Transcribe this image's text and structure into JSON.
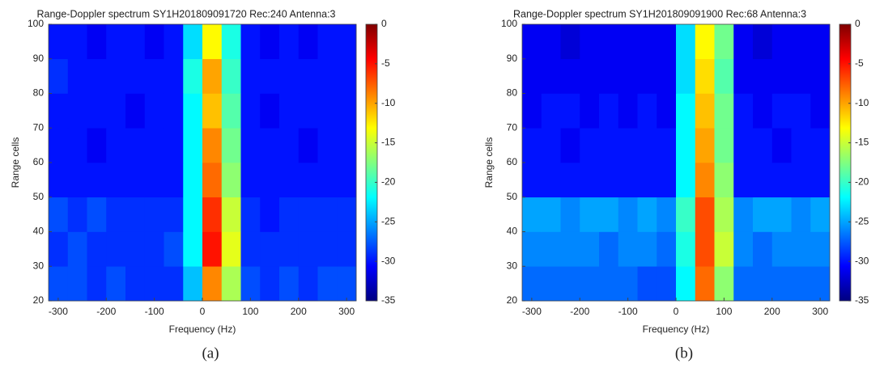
{
  "chart_data": [
    {
      "type": "heatmap",
      "title": "Range-Doppler spectrum SY1H201809091720 Rec:240 Antenna:3",
      "x_label": "Frequency (Hz)",
      "y_label": "Range cells",
      "panel_label": "(a)",
      "xlim": [
        -320,
        320
      ],
      "ylim": [
        20,
        100
      ],
      "xticks": [
        -300,
        -200,
        -100,
        0,
        100,
        200,
        300
      ],
      "yticks": [
        20,
        30,
        40,
        50,
        60,
        70,
        80,
        90,
        100
      ],
      "clim": [
        -35,
        0
      ],
      "cticks": [
        0,
        -5,
        -10,
        -15,
        -20,
        -25,
        -30,
        -35
      ],
      "colormap": "jet",
      "x_edges": [
        -320,
        -280,
        -240,
        -200,
        -160,
        -120,
        -80,
        -40,
        0,
        40,
        80,
        120,
        160,
        200,
        240,
        280,
        320
      ],
      "y_edges": [
        20,
        30,
        40,
        50,
        60,
        70,
        80,
        90,
        100
      ],
      "values": [
        [
          -28,
          -28,
          -29,
          -28,
          -29,
          -29,
          -29,
          -24,
          -9,
          -16,
          -28,
          -29,
          -28,
          -29,
          -28,
          -28
        ],
        [
          -29,
          -28,
          -29,
          -29,
          -29,
          -29,
          -28,
          -22,
          -5,
          -14,
          -29,
          -29,
          -29,
          -29,
          -29,
          -29
        ],
        [
          -28,
          -29,
          -28,
          -29,
          -29,
          -29,
          -29,
          -22,
          -6,
          -15,
          -29,
          -30,
          -29,
          -29,
          -29,
          -29
        ],
        [
          -30,
          -30,
          -30,
          -30,
          -30,
          -30,
          -30,
          -22,
          -8,
          -17,
          -30,
          -30,
          -30,
          -30,
          -30,
          -30
        ],
        [
          -30,
          -30,
          -31,
          -30,
          -30,
          -30,
          -30,
          -22,
          -9,
          -18,
          -30,
          -30,
          -30,
          -31,
          -30,
          -30
        ],
        [
          -30,
          -30,
          -30,
          -30,
          -31,
          -30,
          -30,
          -22,
          -11,
          -19,
          -30,
          -31,
          -30,
          -30,
          -30,
          -30
        ],
        [
          -29,
          -30,
          -30,
          -30,
          -30,
          -30,
          -30,
          -21,
          -10,
          -20,
          -30,
          -30,
          -30,
          -30,
          -30,
          -30
        ],
        [
          -30,
          -30,
          -31,
          -30,
          -30,
          -31,
          -30,
          -23,
          -13,
          -21,
          -30,
          -31,
          -30,
          -31,
          -30,
          -30
        ]
      ]
    },
    {
      "type": "heatmap",
      "title": "Range-Doppler spectrum SY1H201809091900 Rec:68 Antenna:3",
      "x_label": "Frequency (Hz)",
      "y_label": "Range cells",
      "panel_label": "(b)",
      "xlim": [
        -320,
        320
      ],
      "ylim": [
        20,
        100
      ],
      "xticks": [
        -300,
        -200,
        -100,
        0,
        100,
        200,
        300
      ],
      "yticks": [
        20,
        30,
        40,
        50,
        60,
        70,
        80,
        90,
        100
      ],
      "clim": [
        -35,
        0
      ],
      "cticks": [
        0,
        -5,
        -10,
        -15,
        -20,
        -25,
        -30,
        -35
      ],
      "colormap": "jet",
      "x_edges": [
        -320,
        -280,
        -240,
        -200,
        -160,
        -120,
        -80,
        -40,
        0,
        40,
        80,
        120,
        160,
        200,
        240,
        280,
        320
      ],
      "y_edges": [
        20,
        30,
        40,
        50,
        60,
        70,
        80,
        90,
        100
      ],
      "values": [
        [
          -27,
          -27,
          -27,
          -27,
          -27,
          -27,
          -28,
          -28,
          -22,
          -8,
          -17,
          -27,
          -27,
          -27,
          -27,
          -27
        ],
        [
          -26,
          -26,
          -26,
          -26,
          -27,
          -26,
          -26,
          -27,
          -21,
          -7,
          -15,
          -26,
          -27,
          -26,
          -26,
          -26
        ],
        [
          -25,
          -25,
          -26,
          -25,
          -25,
          -26,
          -25,
          -26,
          -20,
          -7,
          -16,
          -26,
          -25,
          -25,
          -26,
          -25
        ],
        [
          -30,
          -30,
          -30,
          -30,
          -30,
          -30,
          -30,
          -30,
          -22,
          -9,
          -17,
          -30,
          -30,
          -30,
          -30,
          -30
        ],
        [
          -30,
          -30,
          -31,
          -30,
          -30,
          -30,
          -30,
          -30,
          -22,
          -10,
          -18,
          -30,
          -30,
          -31,
          -30,
          -30
        ],
        [
          -31,
          -30,
          -30,
          -31,
          -30,
          -31,
          -30,
          -31,
          -22,
          -11,
          -18,
          -30,
          -31,
          -30,
          -30,
          -31
        ],
        [
          -31,
          -31,
          -31,
          -31,
          -31,
          -31,
          -31,
          -31,
          -23,
          -12,
          -19,
          -31,
          -31,
          -31,
          -31,
          -31
        ],
        [
          -31,
          -31,
          -32,
          -31,
          -31,
          -31,
          -31,
          -31,
          -23,
          -13,
          -18,
          -31,
          -32,
          -31,
          -31,
          -31
        ]
      ]
    }
  ]
}
